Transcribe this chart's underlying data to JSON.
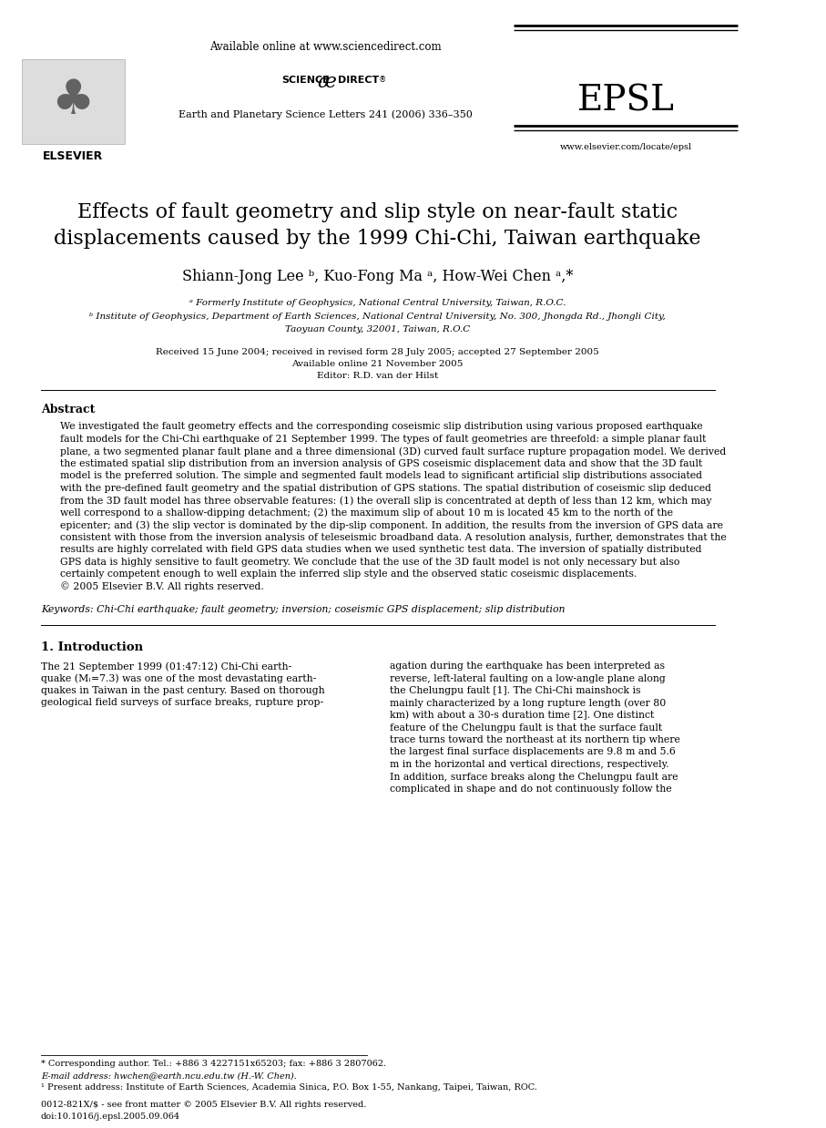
{
  "title_line1": "Effects of fault geometry and slip style on near-fault static",
  "title_line2": "displacements caused by the 1999 Chi-Chi, Taiwan earthquake",
  "authors": "Shiann-Jong Lee ᵇ, Kuo-Fong Ma ᵃ, How-Wei Chen ᵃ,*",
  "affil_a": "ᵃ Formerly Institute of Geophysics, National Central University, Taiwan, R.O.C.",
  "affil_b": "ᵇ Institute of Geophysics, Department of Earth Sciences, National Central University, No. 300, Jhongda Rd., Jhongli City,",
  "affil_b2": "Taoyuan County, 32001, Taiwan, R.O.C",
  "received": "Received 15 June 2004; received in revised form 28 July 2005; accepted 27 September 2005",
  "available": "Available online 21 November 2005",
  "editor": "Editor: R.D. van der Hilst",
  "header_url": "Available online at www.sciencedirect.com",
  "journal_name": "Earth and Planetary Science Letters 241 (2006) 336–350",
  "journal_abbr": "EPSL",
  "website": "www.elsevier.com/locate/epsl",
  "abstract_title": "Abstract",
  "keywords": "Keywords: Chi-Chi earthquake; fault geometry; inversion; coseismic GPS displacement; slip distribution",
  "section1_title": "1. Introduction",
  "footnote_star": "* Corresponding author. Tel.: +886 3 4227151x65203; fax: +886 3 2807062.",
  "footnote_email": "E-mail address: hwchen@earth.ncu.edu.tw (H.-W. Chen).",
  "footnote_1": "¹ Present address: Institute of Earth Sciences, Academia Sinica, P.O. Box 1-55, Nankang, Taipei, Taiwan, ROC.",
  "footnote_issn": "0012-821X/$ - see front matter © 2005 Elsevier B.V. All rights reserved.",
  "footnote_doi": "doi:10.1016/j.epsl.2005.09.064",
  "abstract_lines": [
    "We investigated the fault geometry effects and the corresponding coseismic slip distribution using various proposed earthquake",
    "fault models for the Chi-Chi earthquake of 21 September 1999. The types of fault geometries are threefold: a simple planar fault",
    "plane, a two segmented planar fault plane and a three dimensional (3D) curved fault surface rupture propagation model. We derived",
    "the estimated spatial slip distribution from an inversion analysis of GPS coseismic displacement data and show that the 3D fault",
    "model is the preferred solution. The simple and segmented fault models lead to significant artificial slip distributions associated",
    "with the pre-defined fault geometry and the spatial distribution of GPS stations. The spatial distribution of coseismic slip deduced",
    "from the 3D fault model has three observable features: (1) the overall slip is concentrated at depth of less than 12 km, which may",
    "well correspond to a shallow-dipping detachment; (2) the maximum slip of about 10 m is located 45 km to the north of the",
    "epicenter; and (3) the slip vector is dominated by the dip-slip component. In addition, the results from the inversion of GPS data are",
    "consistent with those from the inversion analysis of teleseismic broadband data. A resolution analysis, further, demonstrates that the",
    "results are highly correlated with field GPS data studies when we used synthetic test data. The inversion of spatially distributed",
    "GPS data is highly sensitive to fault geometry. We conclude that the use of the 3D fault model is not only necessary but also",
    "certainly competent enough to well explain the inferred slip style and the observed static coseismic displacements.",
    "© 2005 Elsevier B.V. All rights reserved."
  ],
  "col1_lines": [
    "The 21 September 1999 (01:47:12) Chi-Chi earth-",
    "quake (Mₗ=7.3) was one of the most devastating earth-",
    "quakes in Taiwan in the past century. Based on thorough",
    "geological field surveys of surface breaks, rupture prop-"
  ],
  "col2_lines": [
    "agation during the earthquake has been interpreted as",
    "reverse, left-lateral faulting on a low-angle plane along",
    "the Chelungpu fault [1]. The Chi-Chi mainshock is",
    "mainly characterized by a long rupture length (over 80",
    "km) with about a 30-s duration time [2]. One distinct",
    "feature of the Chelungpu fault is that the surface fault",
    "trace turns toward the northeast at its northern tip where",
    "the largest final surface displacements are 9.8 m and 5.6",
    "m in the horizontal and vertical directions, respectively.",
    "In addition, surface breaks along the Chelungpu fault are",
    "complicated in shape and do not continuously follow the"
  ],
  "bg_color": "#ffffff"
}
